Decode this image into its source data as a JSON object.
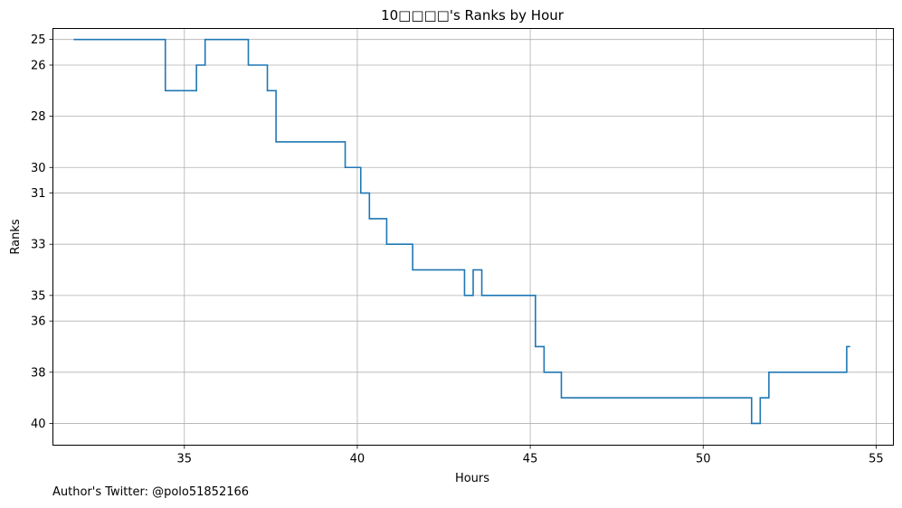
{
  "chart_data": {
    "type": "line",
    "title": "10□□□□'s Ranks by Hour",
    "xlabel": "Hours",
    "ylabel": "Ranks",
    "xlim": [
      31.2,
      55.5
    ],
    "ylim": [
      40.85,
      24.57
    ],
    "y_inverted": true,
    "xticks": [
      35,
      40,
      45,
      50,
      55
    ],
    "yticks": [
      25,
      26,
      28,
      30,
      31,
      33,
      35,
      36,
      38,
      40
    ],
    "grid": true,
    "line_color": "#1f77b4",
    "step": "post",
    "series": [
      {
        "x": [
          31.8,
          34.45,
          35.35,
          35.6,
          36.85,
          37.4,
          37.65,
          39.65,
          40.1,
          40.35,
          40.85,
          41.6,
          43.1,
          43.35,
          43.6,
          45.15,
          45.4,
          45.9,
          51.4,
          51.65,
          51.9,
          54.15,
          54.25
        ],
        "y": [
          25,
          27,
          26,
          25,
          26,
          27,
          29,
          30,
          31,
          32,
          33,
          34,
          35,
          34,
          35,
          37,
          38,
          39,
          40,
          39,
          38,
          37,
          37
        ]
      }
    ]
  },
  "footer": {
    "author": "Author's Twitter: @polo51852166"
  }
}
